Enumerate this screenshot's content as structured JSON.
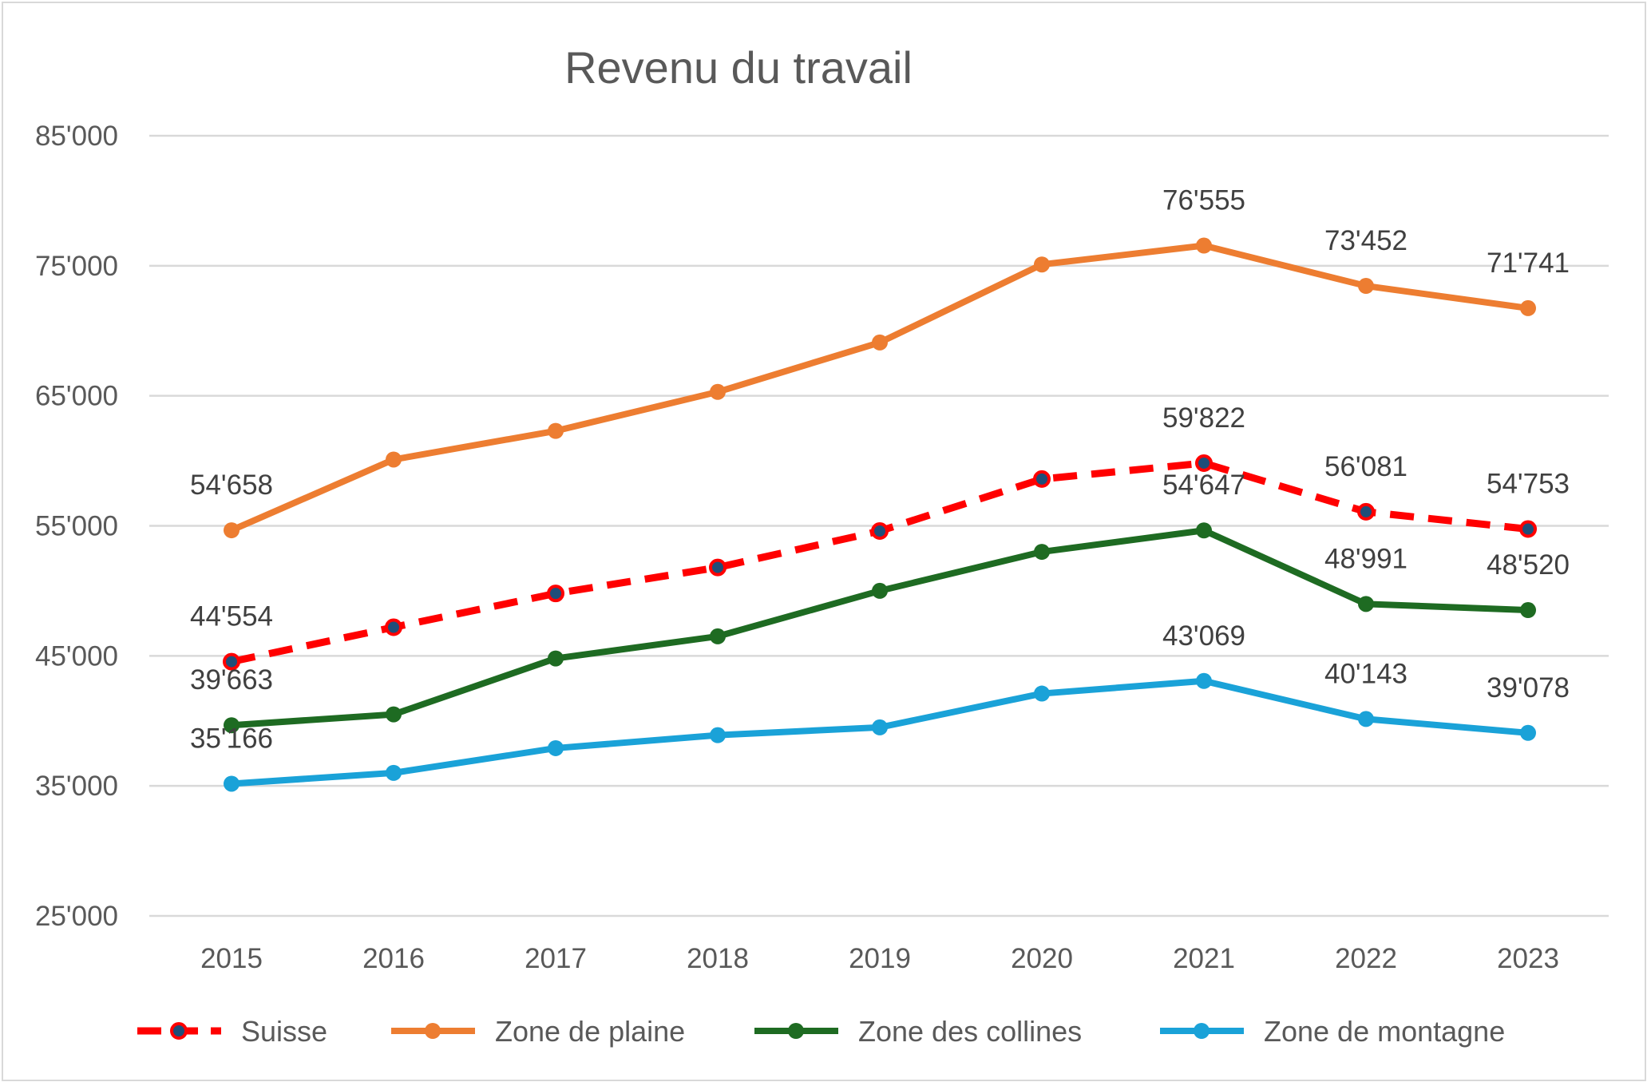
{
  "chart_data": {
    "type": "line",
    "title": "Revenu du travail",
    "xlabel": "",
    "ylabel": "",
    "categories": [
      "2015",
      "2016",
      "2017",
      "2018",
      "2019",
      "2020",
      "2021",
      "2022",
      "2023"
    ],
    "ylim": [
      25000,
      85000
    ],
    "yticks": [
      25000,
      35000,
      45000,
      55000,
      65000,
      75000,
      85000
    ],
    "ytick_labels": [
      "25'000",
      "35'000",
      "45'000",
      "55'000",
      "65'000",
      "75'000",
      "85'000"
    ],
    "grid": true,
    "legend_position": "bottom",
    "series": [
      {
        "name": "Suisse",
        "color": "#ff0000",
        "marker_color": "#1f4e79",
        "dashed": true,
        "values": [
          44554,
          47200,
          49800,
          51800,
          54600,
          58600,
          59822,
          56081,
          54753
        ],
        "labels": [
          "44'554",
          "",
          "",
          "",
          "",
          "",
          "59'822",
          "56'081",
          "54'753"
        ]
      },
      {
        "name": "Zone de plaine",
        "color": "#ed7d31",
        "dashed": false,
        "values": [
          54658,
          60100,
          62300,
          65300,
          69100,
          75100,
          76555,
          73452,
          71741
        ],
        "labels": [
          "54'658",
          "",
          "",
          "",
          "",
          "",
          "76'555",
          "73'452",
          "71'741"
        ]
      },
      {
        "name": "Zone des collines",
        "color": "#1e6b22",
        "dashed": false,
        "values": [
          39663,
          40500,
          44800,
          46500,
          50000,
          53000,
          54647,
          48991,
          48520
        ],
        "labels": [
          "39'663",
          "",
          "",
          "",
          "",
          "",
          "54'647",
          "48'991",
          "48'520"
        ]
      },
      {
        "name": "Zone de montagne",
        "color": "#1aa2d8",
        "dashed": false,
        "values": [
          35166,
          36000,
          37900,
          38900,
          39500,
          42100,
          43069,
          40143,
          39078
        ],
        "labels": [
          "35'166",
          "",
          "",
          "",
          "",
          "",
          "43'069",
          "40'143",
          "39'078"
        ]
      }
    ]
  }
}
